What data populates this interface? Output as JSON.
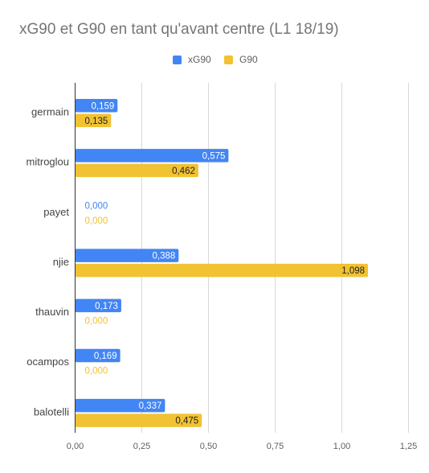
{
  "chart_data": {
    "type": "bar",
    "orientation": "horizontal",
    "title": "xG90 et G90 en tant qu'avant centre (L1 18/19)",
    "categories": [
      "germain",
      "mitroglou",
      "payet",
      "njie",
      "thauvin",
      "ocampos",
      "balotelli"
    ],
    "series": [
      {
        "name": "xG90",
        "color": "#4285f4",
        "values": [
          0.159,
          0.575,
          0.0,
          0.388,
          0.173,
          0.169,
          0.337
        ],
        "labels": [
          "0,159",
          "0,575",
          "0,000",
          "0,388",
          "0,173",
          "0,169",
          "0,337"
        ]
      },
      {
        "name": "G90",
        "color": "#f1c232",
        "values": [
          0.135,
          0.462,
          0.0,
          1.098,
          0.0,
          0.0,
          0.475
        ],
        "labels": [
          "0,135",
          "0,462",
          "0,000",
          "1,098",
          "0,000",
          "0,000",
          "0,475"
        ]
      }
    ],
    "xlim": [
      0,
      1.25
    ],
    "xticks": [
      0,
      0.25,
      0.5,
      0.75,
      1.0,
      1.25
    ],
    "xtick_labels": [
      "0,00",
      "0,25",
      "0,50",
      "0,75",
      "1,00",
      "1,25"
    ],
    "grid": true,
    "legend_position": "top-center"
  }
}
